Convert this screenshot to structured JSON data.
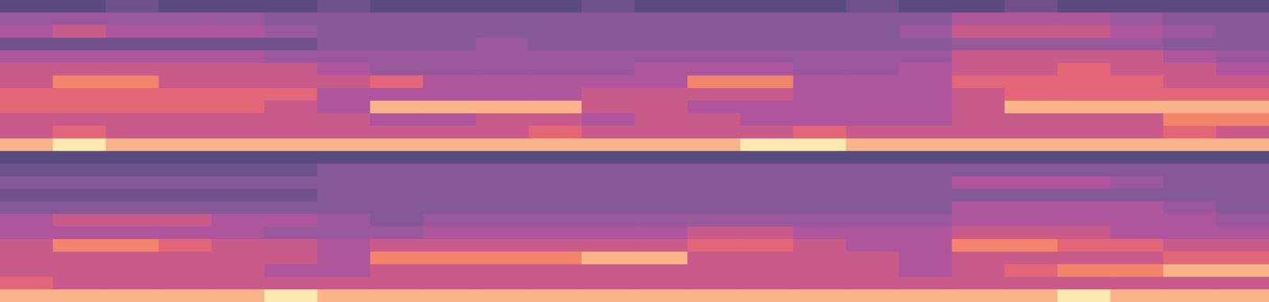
{
  "chart_data": [
    {
      "type": "heatmap",
      "tick_labels": false,
      "cells": [
        [
          1,
          1,
          2,
          1,
          1,
          1,
          2,
          1,
          1,
          1,
          1,
          2,
          1,
          1,
          1,
          1,
          2,
          1,
          1,
          2,
          1,
          1,
          1,
          1
        ],
        [
          4,
          4,
          4,
          4,
          4,
          3,
          3,
          3,
          3,
          3,
          3,
          3,
          3,
          3,
          3,
          3,
          3,
          3,
          5,
          5,
          5,
          4,
          3,
          3
        ],
        [
          5,
          6,
          5,
          5,
          5,
          4,
          3,
          3,
          3,
          3,
          3,
          3,
          3,
          3,
          3,
          3,
          3,
          4,
          6,
          6,
          6,
          5,
          4,
          3
        ],
        [
          2,
          2,
          2,
          2,
          2,
          2,
          3,
          3,
          3,
          4,
          3,
          3,
          3,
          3,
          3,
          3,
          3,
          3,
          4,
          4,
          4,
          4,
          3,
          3
        ],
        [
          5,
          5,
          5,
          5,
          5,
          4,
          4,
          4,
          4,
          4,
          4,
          4,
          4,
          4,
          4,
          4,
          4,
          4,
          6,
          6,
          6,
          6,
          5,
          4
        ],
        [
          6,
          6,
          6,
          6,
          6,
          6,
          5,
          4,
          4,
          4,
          4,
          4,
          5,
          5,
          5,
          4,
          4,
          5,
          6,
          6,
          7,
          6,
          6,
          5
        ],
        [
          6,
          8,
          8,
          6,
          6,
          6,
          6,
          7,
          5,
          5,
          5,
          5,
          5,
          8,
          8,
          5,
          5,
          5,
          7,
          7,
          7,
          7,
          6,
          6
        ],
        [
          7,
          7,
          7,
          7,
          7,
          7,
          5,
          5,
          5,
          5,
          5,
          6,
          6,
          6,
          6,
          5,
          5,
          5,
          6,
          7,
          7,
          7,
          7,
          7
        ],
        [
          7,
          7,
          7,
          7,
          7,
          6,
          5,
          9,
          9,
          9,
          9,
          6,
          6,
          5,
          5,
          5,
          5,
          5,
          6,
          9,
          9,
          9,
          9,
          9
        ],
        [
          6,
          6,
          6,
          6,
          6,
          6,
          6,
          5,
          5,
          6,
          6,
          5,
          6,
          6,
          5,
          5,
          5,
          5,
          6,
          6,
          6,
          6,
          8,
          8
        ],
        [
          6,
          7,
          6,
          6,
          6,
          6,
          6,
          6,
          6,
          6,
          7,
          6,
          6,
          6,
          6,
          7,
          6,
          6,
          6,
          6,
          6,
          6,
          7,
          6
        ],
        [
          9,
          10,
          9,
          9,
          9,
          9,
          9,
          9,
          9,
          9,
          9,
          9,
          9,
          9,
          10,
          10,
          9,
          9,
          9,
          9,
          9,
          9,
          9,
          9
        ]
      ]
    },
    {
      "type": "heatmap",
      "tick_labels": false,
      "cells": [
        [
          1,
          1,
          1,
          1,
          1,
          1,
          1,
          1,
          1,
          1,
          1,
          1,
          1,
          1,
          1,
          1,
          1,
          1,
          1,
          1,
          1,
          1,
          1,
          1
        ],
        [
          2,
          2,
          2,
          2,
          2,
          2,
          3,
          3,
          3,
          3,
          3,
          3,
          3,
          3,
          3,
          3,
          3,
          3,
          3,
          3,
          3,
          3,
          3,
          3
        ],
        [
          3,
          3,
          3,
          3,
          3,
          3,
          3,
          3,
          3,
          3,
          3,
          3,
          3,
          3,
          3,
          3,
          3,
          3,
          5,
          5,
          5,
          4,
          3,
          3
        ],
        [
          2,
          2,
          2,
          2,
          2,
          2,
          3,
          3,
          3,
          3,
          3,
          3,
          3,
          3,
          3,
          3,
          3,
          3,
          3,
          3,
          3,
          3,
          3,
          3
        ],
        [
          3,
          3,
          3,
          3,
          3,
          3,
          3,
          3,
          3,
          3,
          3,
          3,
          3,
          3,
          3,
          3,
          3,
          3,
          5,
          5,
          5,
          5,
          4,
          3
        ],
        [
          5,
          6,
          6,
          6,
          5,
          5,
          4,
          3,
          4,
          4,
          4,
          4,
          4,
          4,
          4,
          4,
          4,
          4,
          5,
          5,
          5,
          5,
          5,
          4
        ],
        [
          5,
          5,
          5,
          5,
          5,
          4,
          4,
          4,
          5,
          5,
          5,
          5,
          5,
          6,
          6,
          5,
          5,
          5,
          6,
          6,
          6,
          5,
          5,
          5
        ],
        [
          6,
          8,
          8,
          7,
          6,
          6,
          5,
          6,
          6,
          6,
          6,
          6,
          6,
          7,
          7,
          6,
          5,
          5,
          8,
          8,
          7,
          7,
          6,
          6
        ],
        [
          6,
          6,
          6,
          6,
          6,
          6,
          5,
          8,
          8,
          8,
          8,
          9,
          9,
          6,
          6,
          6,
          6,
          5,
          6,
          6,
          6,
          6,
          7,
          7
        ],
        [
          6,
          6,
          6,
          6,
          6,
          5,
          5,
          6,
          6,
          6,
          6,
          6,
          6,
          6,
          6,
          6,
          6,
          5,
          6,
          7,
          8,
          8,
          9,
          9
        ],
        [
          7,
          6,
          6,
          6,
          6,
          6,
          6,
          6,
          6,
          6,
          6,
          6,
          6,
          6,
          6,
          6,
          6,
          6,
          6,
          6,
          6,
          6,
          6,
          6
        ],
        [
          9,
          9,
          9,
          9,
          9,
          10,
          9,
          9,
          9,
          9,
          9,
          9,
          9,
          9,
          9,
          9,
          9,
          9,
          9,
          9,
          10,
          9,
          9,
          9
        ]
      ]
    }
  ]
}
